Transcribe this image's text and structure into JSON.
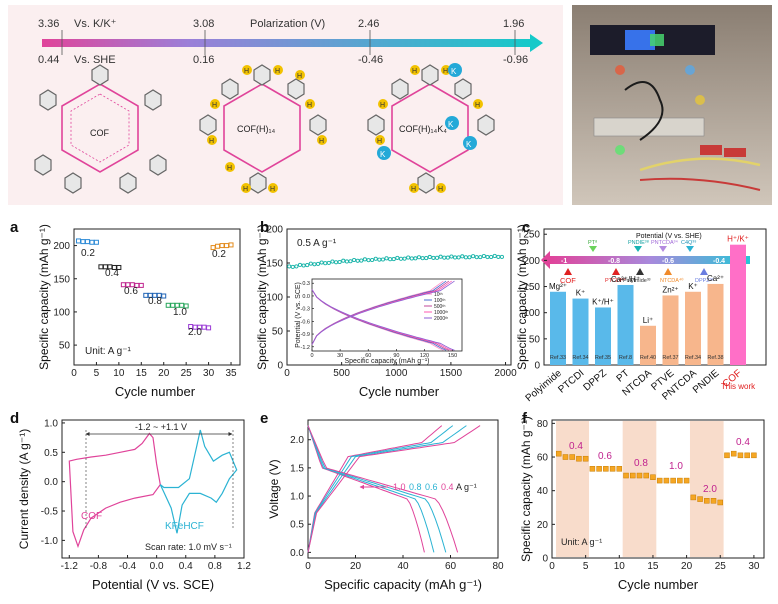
{
  "top": {
    "potential_row1": [
      "3.36",
      "3.08",
      "2.46",
      "1.96"
    ],
    "row1_label": "Vs. K/K⁺",
    "potential_row2": [
      "0.44",
      "0.16",
      "-0.46",
      "-0.96"
    ],
    "row2_label": "Vs. SHE",
    "polarization_label": "Polarization (V)",
    "structures": [
      "COF",
      "COF(H)₁₄",
      "COF(H)₁₄K₄"
    ],
    "h_label": "H",
    "k_label": "K"
  },
  "colors": {
    "pink": "#e0449a",
    "cyan": "#2bb3d3",
    "gold": "#f2c200",
    "grid_bg": "#fbeeee",
    "band": "#f8dccb"
  },
  "chart_data": [
    {
      "panel": "a",
      "type": "scatter",
      "title": "",
      "xlabel": "Cycle number",
      "ylabel": "Specific capacity (mAh g⁻¹)",
      "xlim": [
        0,
        37
      ],
      "ylim": [
        20,
        225
      ],
      "xticks": [
        "0",
        "5",
        "10",
        "15",
        "20",
        "25",
        "30",
        "35"
      ],
      "yticks": [
        "50",
        "100",
        "150",
        "200"
      ],
      "series": [
        {
          "rate": "0.2",
          "x": [
            1,
            2,
            3,
            4,
            5
          ],
          "y": [
            207,
            206,
            206,
            205,
            205
          ]
        },
        {
          "rate": "0.4",
          "x": [
            6,
            7,
            8,
            9,
            10
          ],
          "y": [
            168,
            168,
            168,
            167,
            167
          ]
        },
        {
          "rate": "0.6",
          "x": [
            11,
            12,
            13,
            14,
            15
          ],
          "y": [
            141,
            141,
            141,
            140,
            140
          ]
        },
        {
          "rate": "0.8",
          "x": [
            16,
            17,
            18,
            19,
            20
          ],
          "y": [
            125,
            125,
            125,
            125,
            124
          ]
        },
        {
          "rate": "1.0",
          "x": [
            21,
            22,
            23,
            24,
            25
          ],
          "y": [
            110,
            110,
            110,
            110,
            109
          ]
        },
        {
          "rate": "2.0",
          "x": [
            26,
            27,
            28,
            29,
            30
          ],
          "y": [
            78,
            77,
            77,
            77,
            76
          ]
        },
        {
          "rate": "0.2",
          "x": [
            31,
            32,
            33,
            34,
            35
          ],
          "y": [
            197,
            199,
            200,
            200,
            201
          ]
        }
      ],
      "unit_label": "Unit: A g⁻¹"
    },
    {
      "panel": "b",
      "type": "scatter",
      "xlabel": "Cycle number",
      "ylabel": "Specific capacity (mAh g⁻¹)",
      "xlim": [
        0,
        2050
      ],
      "ylim": [
        0,
        200
      ],
      "xticks": [
        "0",
        "500",
        "1000",
        "1500",
        "2000"
      ],
      "yticks": [
        "0",
        "50",
        "100",
        "150",
        "200"
      ],
      "rate_label": "0.5 A g⁻¹",
      "x": [
        20,
        100,
        200,
        300,
        400,
        500,
        600,
        700,
        800,
        900,
        1000,
        1100,
        1200,
        1300,
        1400,
        1500,
        1600,
        1700,
        1800,
        1900,
        2000
      ],
      "y": [
        143,
        146,
        148,
        150,
        151,
        152,
        153,
        153,
        154,
        154,
        155,
        155,
        156,
        156,
        157,
        157,
        158,
        158,
        159,
        159,
        160
      ],
      "inset": {
        "xlabel": "Specific capacity (mAh g⁻¹)",
        "ylabel": "Potential (V vs. SCE)",
        "xlim": [
          0,
          160
        ],
        "ylim": [
          -1.3,
          0.4
        ],
        "xticks": [
          "0",
          "30",
          "60",
          "90",
          "120",
          "150"
        ],
        "yticks": [
          "0.3",
          "0.0",
          "-0.3",
          "-0.6",
          "-0.9",
          "-1.2"
        ],
        "legend": [
          "10ᵗʰ",
          "100ᵗʰ",
          "500ᵗʰ",
          "1000ᵗʰ",
          "2000ᵗʰ"
        ]
      }
    },
    {
      "panel": "c",
      "type": "bar",
      "ylabel": "Specific capacity (mAh g⁻¹)",
      "ylim": [
        0,
        260
      ],
      "yticks": [
        "0",
        "50",
        "100",
        "150",
        "200",
        "250"
      ],
      "categories": [
        "Polyimide",
        "PTCDI",
        "DPPZ",
        "PT",
        "NTCDA",
        "PTVE",
        "PNTCDA",
        "PNDIE",
        "COF"
      ],
      "values": [
        140,
        127,
        110,
        153,
        75,
        133,
        140,
        155,
        230
      ],
      "ions": [
        "Mg²⁺",
        "K⁺",
        "K⁺/H⁺",
        "Ca²⁺/H⁺",
        "Li⁺",
        "Zn²⁺",
        "K⁺",
        "Ca²⁺",
        "H⁺/K⁺"
      ],
      "refs": [
        "Ref.33",
        "Ref.34",
        "Ref.35",
        "Ref.8",
        "Ref.40",
        "Ref.37",
        "Ref.34",
        "Ref.38",
        ""
      ],
      "this_work": "This work",
      "potential_title": "Potential (V vs. SHE)",
      "potential_values": [
        "-1",
        "-0.8",
        "-0.6",
        "-0.4"
      ],
      "markers_top": [
        "PT⁸",
        "PNDIE³⁸",
        "PNTCDA³⁴",
        "C4Q³⁹"
      ],
      "markers_bottom": [
        "COF",
        "PTCDI³⁴",
        "Polyimide³³",
        "NTCDA⁴⁰",
        "DPPZ³⁵"
      ]
    },
    {
      "panel": "d",
      "type": "line",
      "xlabel": "Potential (V vs. SCE)",
      "ylabel": "Current density (A g⁻¹)",
      "xlim": [
        -1.3,
        1.2
      ],
      "ylim": [
        -1.3,
        1.05
      ],
      "xticks": [
        "-1.2",
        "-0.8",
        "-0.4",
        "0.0",
        "0.4",
        "0.8",
        "1.2"
      ],
      "yticks": [
        "1.0",
        "0.5",
        "0.0",
        "-0.5",
        "-1.0"
      ],
      "window_label": "-1.2 ~ +1.1 V",
      "scan_label": "Scan rate: 1.0 mV s⁻¹",
      "series": [
        {
          "name": "COF"
        },
        {
          "name": "KFeHCF"
        }
      ]
    },
    {
      "panel": "e",
      "type": "line",
      "xlabel": "Specific capacity (mAh g⁻¹)",
      "ylabel": "Voltage (V)",
      "xlim": [
        0,
        80
      ],
      "ylim": [
        -0.1,
        2.35
      ],
      "xticks": [
        "0",
        "20",
        "40",
        "60",
        "80"
      ],
      "yticks": [
        "0.0",
        "0.5",
        "1.0",
        "1.5",
        "2.0"
      ],
      "rates": [
        "1.0",
        "0.8",
        "0.6",
        "0.4"
      ],
      "unit": "A g⁻¹",
      "series": [
        {
          "rate": "1.0",
          "capacity": 49
        },
        {
          "rate": "0.8",
          "capacity": 53
        },
        {
          "rate": "0.6",
          "capacity": 58
        },
        {
          "rate": "0.4",
          "capacity": 63
        }
      ]
    },
    {
      "panel": "f",
      "type": "scatter",
      "xlabel": "Cycle number",
      "ylabel": "Specific capacity (mAh g⁻¹)",
      "xlim": [
        0,
        31.5
      ],
      "ylim": [
        0,
        82
      ],
      "xticks": [
        "0",
        "5",
        "10",
        "15",
        "20",
        "25",
        "30"
      ],
      "yticks": [
        "0",
        "20",
        "40",
        "60",
        "80"
      ],
      "unit_label": "Unit: A g⁻¹",
      "series": [
        {
          "rate": "0.4",
          "x": [
            1,
            2,
            3,
            4,
            5
          ],
          "y": [
            62,
            60,
            60,
            59,
            59
          ]
        },
        {
          "rate": "0.6",
          "x": [
            6,
            7,
            8,
            9,
            10
          ],
          "y": [
            53,
            53,
            53,
            53,
            53
          ]
        },
        {
          "rate": "0.8",
          "x": [
            11,
            12,
            13,
            14,
            15
          ],
          "y": [
            49,
            49,
            49,
            49,
            48
          ]
        },
        {
          "rate": "1.0",
          "x": [
            16,
            17,
            18,
            19,
            20
          ],
          "y": [
            46,
            46,
            46,
            46,
            46
          ]
        },
        {
          "rate": "2.0",
          "x": [
            21,
            22,
            23,
            24,
            25
          ],
          "y": [
            36,
            35,
            34,
            34,
            33
          ]
        },
        {
          "rate": "0.4",
          "x": [
            26,
            27,
            28,
            29,
            30
          ],
          "y": [
            61,
            62,
            61,
            61,
            61
          ]
        }
      ]
    }
  ]
}
